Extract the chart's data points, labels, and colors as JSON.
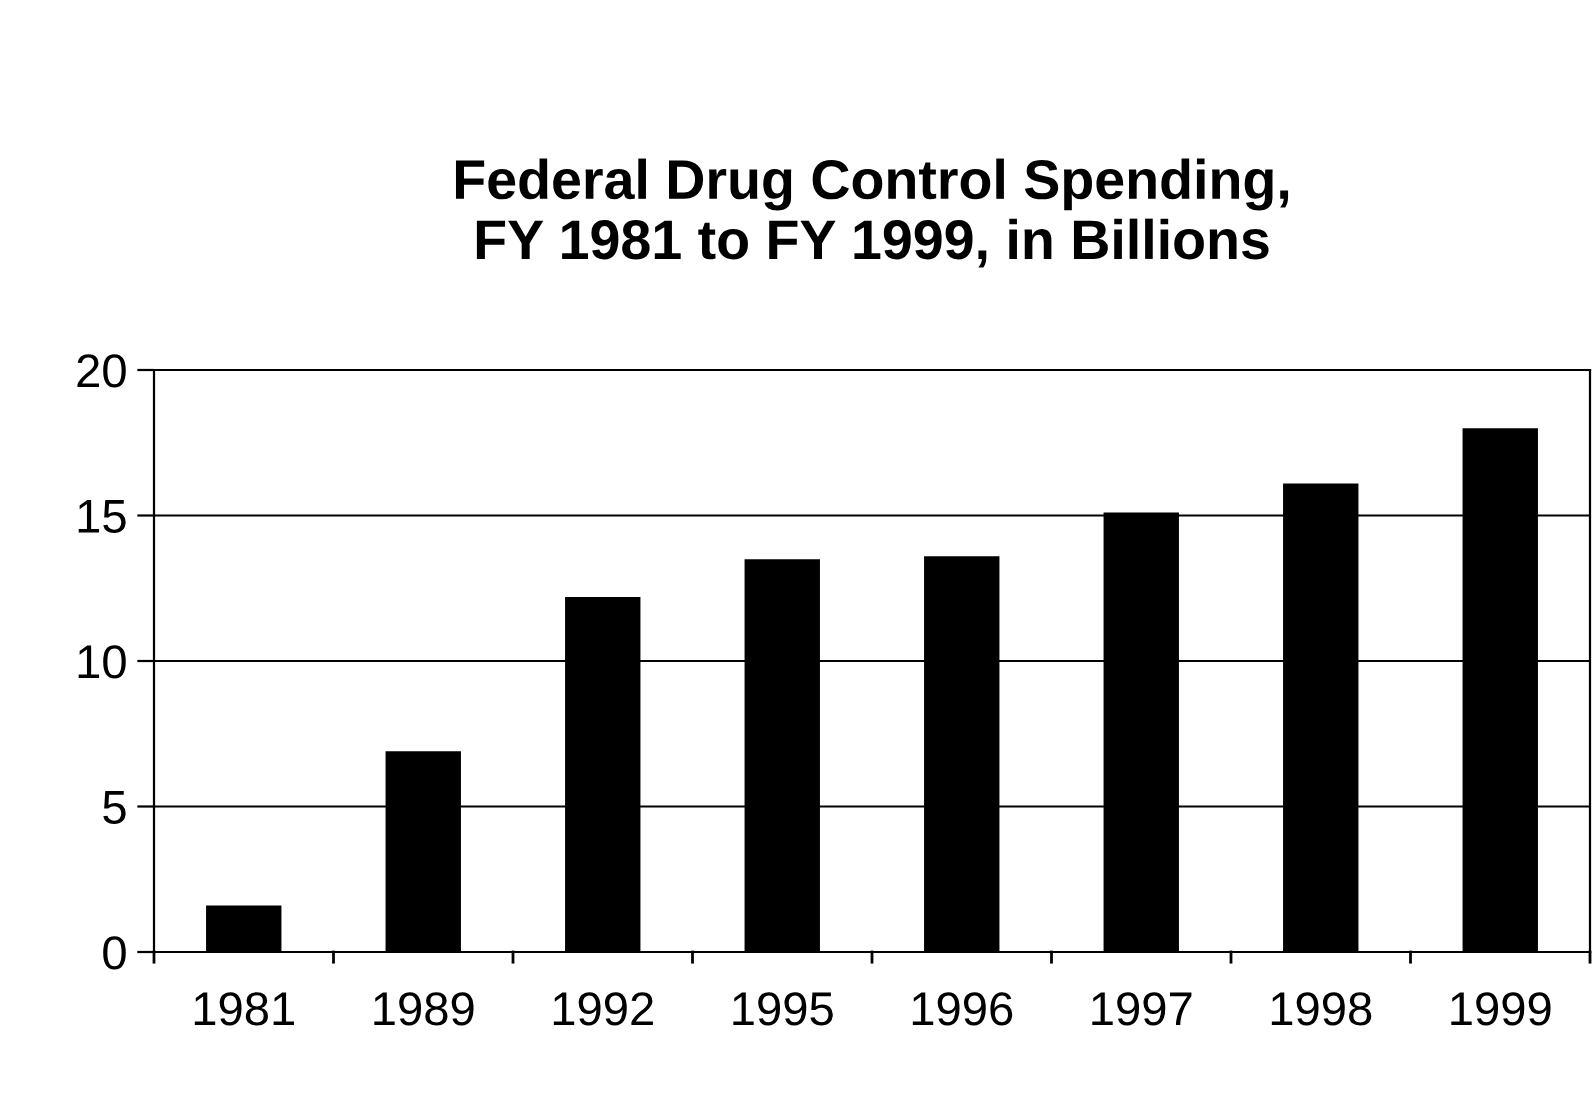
{
  "chart_data": {
    "type": "bar",
    "title": "Federal Drug Control Spending,\nFY 1981 to FY 1999, in Billions",
    "categories": [
      "1981",
      "1989",
      "1992",
      "1995",
      "1996",
      "1997",
      "1998",
      "1999"
    ],
    "values": [
      1.6,
      6.9,
      12.2,
      13.5,
      13.6,
      15.1,
      16.1,
      18.0
    ],
    "color": "#000000",
    "ylim": [
      0,
      20
    ],
    "yticks": [
      0,
      5,
      10,
      15,
      20
    ],
    "grid": "y"
  }
}
